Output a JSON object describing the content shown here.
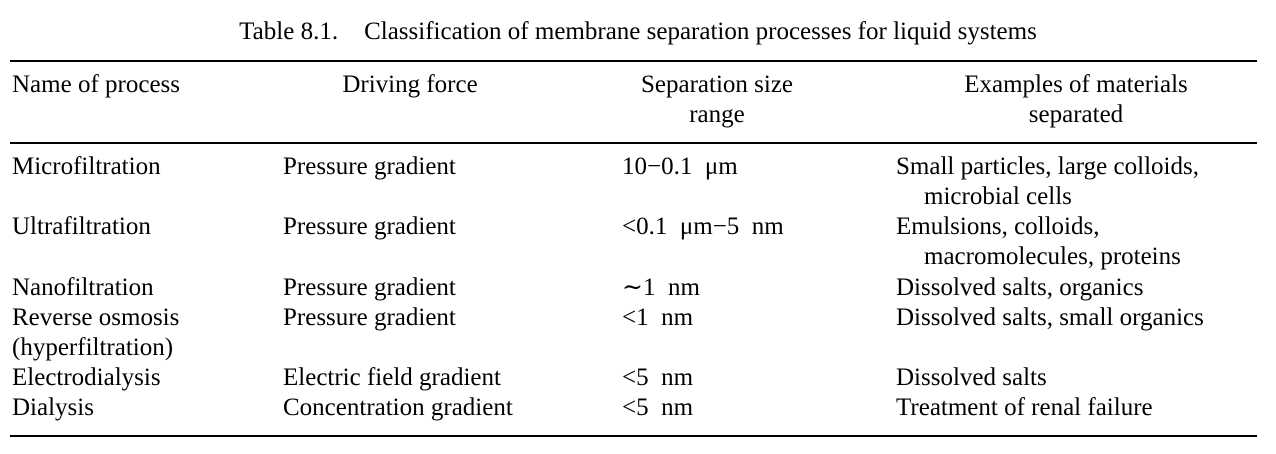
{
  "caption": {
    "label": "Table 8.1.",
    "title": "Classification of membrane separation processes for liquid systems"
  },
  "headers": [
    {
      "lines": [
        "Name of process"
      ]
    },
    {
      "lines": [
        "Driving force"
      ]
    },
    {
      "lines": [
        "Separation size",
        "range"
      ]
    },
    {
      "lines": [
        "Examples of materials",
        "separated"
      ]
    }
  ],
  "rows": [
    {
      "process": [
        "Microfiltration"
      ],
      "driving_force": "Pressure gradient",
      "size_range": "10−0.1  μm",
      "examples": [
        "Small particles, large colloids,",
        "microbial cells"
      ]
    },
    {
      "process": [
        "Ultrafiltration"
      ],
      "driving_force": "Pressure gradient",
      "size_range": "<0.1  μm−5  nm",
      "examples": [
        "Emulsions, colloids,",
        "macromolecules, proteins"
      ]
    },
    {
      "process": [
        "Nanofiltration"
      ],
      "driving_force": "Pressure gradient",
      "size_range": "∼1  nm",
      "examples": [
        "Dissolved salts, organics"
      ]
    },
    {
      "process": [
        "Reverse osmosis",
        "(hyperfiltration)"
      ],
      "driving_force": "Pressure gradient",
      "size_range": "<1  nm",
      "examples": [
        "Dissolved salts, small organics"
      ]
    },
    {
      "process": [
        "Electrodialysis"
      ],
      "driving_force": "Electric field gradient",
      "size_range": "<5  nm",
      "examples": [
        "Dissolved salts"
      ]
    },
    {
      "process": [
        "Dialysis"
      ],
      "driving_force": "Concentration gradient",
      "size_range": "<5  nm",
      "examples": [
        "Treatment of renal failure"
      ]
    }
  ]
}
